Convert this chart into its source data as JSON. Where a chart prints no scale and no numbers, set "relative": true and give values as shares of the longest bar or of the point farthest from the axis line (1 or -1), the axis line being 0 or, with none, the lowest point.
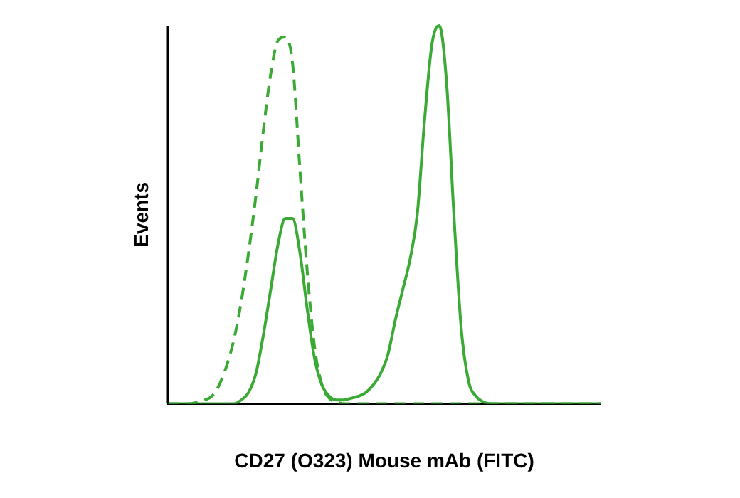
{
  "chart_data": {
    "type": "line",
    "relative": true,
    "xlabel": "CD27 (O323) Mouse mAb (FITC)",
    "ylabel": "Events",
    "grid": false,
    "legend": false,
    "marker": "none",
    "categories": [
      null,
      null,
      null,
      null,
      null,
      null,
      null,
      null,
      null,
      null,
      null,
      null,
      null,
      null,
      null,
      null,
      null,
      null,
      null,
      null,
      null,
      null,
      null,
      null,
      null,
      null,
      null,
      null,
      null,
      null,
      null,
      null,
      null,
      null,
      null,
      null,
      null,
      null,
      null,
      null,
      null,
      null,
      null,
      null,
      null,
      null,
      null,
      null,
      null,
      null,
      null,
      null,
      null,
      null,
      null,
      null,
      null,
      null,
      null,
      null
    ],
    "series": [
      {
        "color": "#3aaa35",
        "line_style": "dashed",
        "values": [
          0,
          0,
          0,
          0,
          0.005,
          0.01,
          0.02,
          0.05,
          0.1,
          0.17,
          0.27,
          0.4,
          0.55,
          0.72,
          0.87,
          0.96,
          0.97,
          0.9,
          0.62,
          0.35,
          0.15,
          0.05,
          0.015,
          0.005,
          0,
          0,
          0,
          0,
          0,
          0,
          0,
          0,
          0,
          0,
          0,
          0,
          0,
          0,
          0,
          0,
          0,
          0,
          0,
          0,
          0,
          0,
          0,
          0,
          0,
          0,
          0,
          0,
          0,
          0,
          0,
          0,
          0,
          0,
          0,
          0
        ]
      },
      {
        "color": "#3aaa35",
        "line_style": "solid",
        "values": [
          0,
          0,
          0,
          0,
          0,
          0,
          0,
          0,
          0,
          0,
          0.01,
          0.03,
          0.08,
          0.18,
          0.3,
          0.42,
          0.49,
          0.49,
          0.4,
          0.25,
          0.12,
          0.05,
          0.02,
          0.01,
          0.01,
          0.015,
          0.02,
          0.03,
          0.05,
          0.08,
          0.13,
          0.22,
          0.3,
          0.38,
          0.5,
          0.75,
          0.95,
          1,
          0.85,
          0.5,
          0.2,
          0.06,
          0.02,
          0.005,
          0,
          0,
          0,
          0,
          0,
          0,
          0,
          0,
          0,
          0,
          0,
          0,
          0,
          0,
          0,
          0
        ]
      }
    ]
  }
}
